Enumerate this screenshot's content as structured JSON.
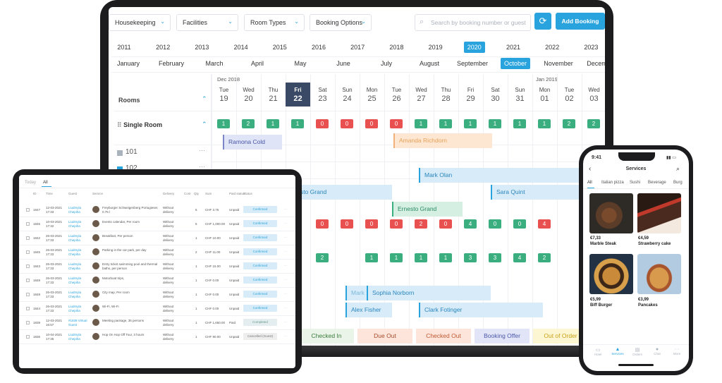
{
  "toolbar": {
    "dropdowns": [
      "Housekeeping",
      "Facilities",
      "Room Types",
      "Booking Options"
    ],
    "search_placeholder": "Search by booking number or guest",
    "add_label": "Add Booking"
  },
  "years": [
    "2011",
    "2012",
    "2013",
    "2014",
    "2015",
    "2016",
    "2017",
    "2018",
    "2019",
    "2020",
    "2021",
    "2022",
    "2023"
  ],
  "selected_year": "2020",
  "months": [
    "January",
    "February",
    "March",
    "April",
    "May",
    "June",
    "July",
    "August",
    "September",
    "October",
    "November",
    "December"
  ],
  "selected_month": "October",
  "periods": {
    "left": "Dec 2018",
    "right": "Jan 2019"
  },
  "days": [
    {
      "n": "Tue",
      "d": "19"
    },
    {
      "n": "Wed",
      "d": "20"
    },
    {
      "n": "Thu",
      "d": "21"
    },
    {
      "n": "Fri",
      "d": "22"
    },
    {
      "n": "Sat",
      "d": "23"
    },
    {
      "n": "Sun",
      "d": "24"
    },
    {
      "n": "Mon",
      "d": "25"
    },
    {
      "n": "Tue",
      "d": "26"
    },
    {
      "n": "Wed",
      "d": "27"
    },
    {
      "n": "Thu",
      "d": "28"
    },
    {
      "n": "Fri",
      "d": "29"
    },
    {
      "n": "Sat",
      "d": "30"
    },
    {
      "n": "Sun",
      "d": "31"
    },
    {
      "n": "Mon",
      "d": "01"
    },
    {
      "n": "Tue",
      "d": "02"
    },
    {
      "n": "Wed",
      "d": "03"
    }
  ],
  "rooms_label": "Rooms",
  "room_type": "Single Room",
  "room_numbers": [
    "101",
    "102"
  ],
  "avail_row1": [
    "1",
    "2",
    "1",
    "1",
    "0",
    "0",
    "0",
    "0",
    "1",
    "1",
    "1",
    "1",
    "1",
    "1",
    "2",
    "2"
  ],
  "avail_row2": [
    "0",
    "0",
    "0",
    "0",
    "2",
    "0",
    "4",
    "0",
    "0",
    "4"
  ],
  "avail_row3": [
    "2",
    "1",
    "1",
    "1",
    "1",
    "3",
    "3",
    "4",
    "2"
  ],
  "bookings": [
    "Ramona Cold",
    "Amanda Richdorn",
    "Mark Olan",
    "Ernesto Grand",
    "Sara Quint",
    "Ernesto Grand",
    "Mark",
    "Sophia Norborn",
    "Alex Fisher",
    "Clark Fotinger"
  ],
  "legend": [
    "Checked In",
    "Due Out",
    "Checked Out",
    "Booking Offer",
    "Out of Order"
  ],
  "tablet": {
    "tabs": [
      "Today",
      "All"
    ],
    "headers": [
      "ID",
      "Time",
      "Guest",
      "Service",
      "Delivery",
      "Cost",
      "Qty",
      "Sum",
      "Paid status",
      "Status"
    ],
    "rows": [
      {
        "id": "1847",
        "date": "12-03-2021",
        "time": "17:33",
        "guest": "Liudmyla Chepiha",
        "service": "Freyburger Schweigenberg Portugieser, 0.75 l",
        "delivery": "Without delivery",
        "qty": "5",
        "sum": "CHF 3.75",
        "paid": "Unpaid",
        "status": "Confirmed"
      },
      {
        "id": "1846",
        "date": "10-03-2021",
        "time": "17:32",
        "guest": "Liudmyla Chepiha",
        "service": "Events calendar, Per room",
        "delivery": "Without delivery",
        "qty": "5",
        "sum": "CHF 1,000.00",
        "paid": "Unpaid",
        "status": "Confirmed"
      },
      {
        "id": "1842",
        "date": "26-03-2021",
        "time": "17:33",
        "guest": "Liudmyla Chepiha",
        "service": "Breakfast, Per person",
        "delivery": "Without delivery",
        "qty": "1",
        "sum": "CHF 10.00",
        "paid": "Unpaid",
        "status": "Confirmed"
      },
      {
        "id": "1845",
        "date": "26-03-2021",
        "time": "17:33",
        "guest": "Liudmyla Chepiha",
        "service": "Parking in the car park, per day",
        "delivery": "Without delivery",
        "qty": "2",
        "sum": "CHF 11.00",
        "paid": "Unpaid",
        "status": "Confirmed"
      },
      {
        "id": "1843",
        "date": "26-03-2021",
        "time": "17:33",
        "guest": "Liudmyla Chepiha",
        "service": "Entry ticket swimming pool and thermal baths, per person",
        "delivery": "Without delivery",
        "qty": "1",
        "sum": "CHF 15.00",
        "paid": "Unpaid",
        "status": "Confirmed"
      },
      {
        "id": "1848",
        "date": "26-03-2021",
        "time": "17:33",
        "guest": "Liudmyla Chepiha",
        "service": "Motorboat trips,",
        "delivery": "Without delivery",
        "qty": "1",
        "sum": "CHF 0.00",
        "paid": "Unpaid",
        "status": "Confirmed"
      },
      {
        "id": "1848",
        "date": "26-03-2021",
        "time": "17:33",
        "guest": "Liudmyla Chepiha",
        "service": "City map, Per room",
        "delivery": "Without delivery",
        "qty": "1",
        "sum": "CHF 0.00",
        "paid": "Unpaid",
        "status": "Confirmed"
      },
      {
        "id": "1844",
        "date": "26-03-2021",
        "time": "17:33",
        "guest": "Liudmyla Chepiha",
        "service": "Wi-Fi, Wi-Fi",
        "delivery": "Without delivery",
        "qty": "1",
        "sum": "CHF 0.00",
        "paid": "Unpaid",
        "status": "Confirmed"
      },
      {
        "id": "1839",
        "date": "12-03-2021",
        "time": "16:57",
        "guest": "#1839 Virtual Guest",
        "service": "Meeting package, 35 persons",
        "delivery": "Without delivery",
        "qty": "1",
        "sum": "CHF 1,650.00",
        "paid": "Paid",
        "status": "Completed"
      },
      {
        "id": "1836",
        "date": "10-04-2021",
        "time": "17:35",
        "guest": "Liudmyla Chepiha",
        "service": "Hop On Hop Off Tour, 3 hours",
        "delivery": "Without delivery",
        "qty": "1",
        "sum": "CHF 90.00",
        "paid": "Unpaid",
        "status": "Cancelled (Guest)"
      }
    ]
  },
  "phone": {
    "time": "9:41",
    "title": "Services",
    "tabs": [
      "All",
      "Italian pizza",
      "Sushi",
      "Beverage",
      "Burg"
    ],
    "items": [
      {
        "price": "€7,33",
        "name": "Marble Steak"
      },
      {
        "price": "€4,59",
        "name": "Strawberry cake"
      },
      {
        "price": "€5,99",
        "name": "Biff Burger"
      },
      {
        "price": "€3,99",
        "name": "Pancakes"
      }
    ],
    "nav": [
      "Hotel",
      "Services",
      "Orders",
      "Chat",
      "More"
    ]
  },
  "colors": {
    "accent": "#29a3dd",
    "green": "#3aae7f",
    "red": "#e95151"
  }
}
